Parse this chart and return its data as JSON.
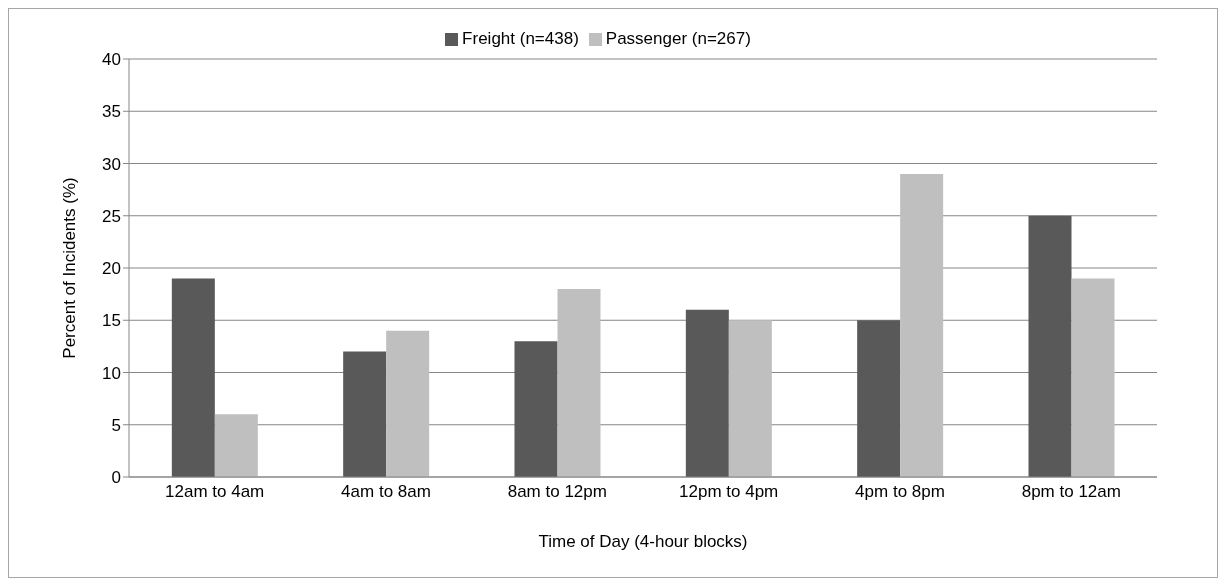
{
  "chart_data": {
    "type": "bar",
    "xlabel": "Time of Day (4-hour blocks)",
    "ylabel": "Percent of Incidents (%)",
    "categories": [
      "12am to 4am",
      "4am to 8am",
      "8am to 12pm",
      "12pm to 4pm",
      "4pm to 8pm",
      "8pm to 12am"
    ],
    "series": [
      {
        "name": "Freight (n=438)",
        "color": "#595959",
        "values": [
          19,
          12,
          13,
          16,
          15,
          25
        ]
      },
      {
        "name": "Passenger (n=267)",
        "color": "#bfbfbf",
        "values": [
          6,
          14,
          18,
          15,
          29,
          19
        ]
      }
    ],
    "ylim": [
      0,
      40
    ],
    "yticks": [
      0,
      5,
      10,
      15,
      20,
      25,
      30,
      35,
      40
    ],
    "grid": "y",
    "legend": "top"
  }
}
